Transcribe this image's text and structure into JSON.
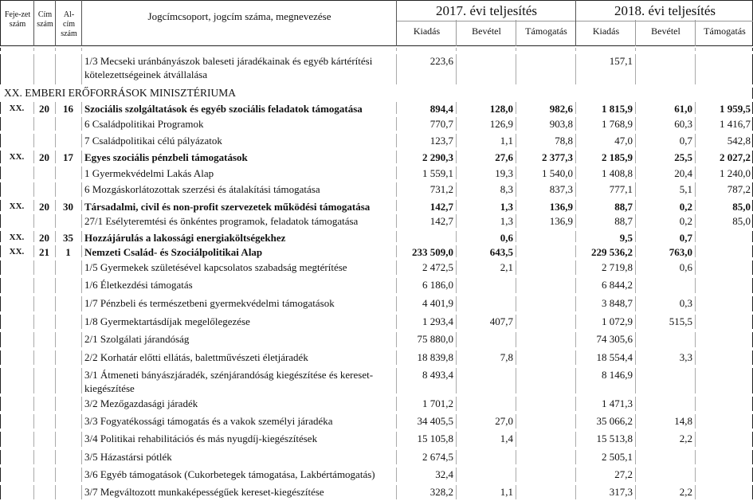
{
  "header": {
    "col_fejezet": "Feje-zet szám",
    "col_cim": "Cím szám",
    "col_alcim": "Al-cím szám",
    "col_name": "Jogcímcsoport, jogcím száma, megnevezése",
    "year1": "2017. évi teljesítés",
    "year2": "2018. évi teljesítés",
    "sub": [
      "Kiadás",
      "Bevétel",
      "Támogatás",
      "Kiadás",
      "Bevétel",
      "Támogatás"
    ]
  },
  "rows": [
    {
      "fej": "",
      "cim": "",
      "alcim": "",
      "name": "1/3 Mecseki uránbányászok baleseti járadékainak és egyéb kártérítési kötelezettségeinek átvállalása",
      "bold": false,
      "v": [
        "223,6",
        "",
        "",
        "157,1",
        "",
        ""
      ]
    },
    {
      "section": "XX. EMBERI ERŐFORRÁSOK MINISZTÉRIUMA"
    },
    {
      "fej": "XX.",
      "cim": "20",
      "alcim": "16",
      "name": "Szociális szolgáltatások és egyéb szociális feladatok támogatása",
      "bold": true,
      "v": [
        "894,4",
        "128,0",
        "982,6",
        "1 815,9",
        "61,0",
        "1 959,5"
      ]
    },
    {
      "fej": "",
      "cim": "",
      "alcim": "",
      "name": "6 Családpolitikai Programok",
      "bold": false,
      "v": [
        "770,7",
        "126,9",
        "903,8",
        "1 768,9",
        "60,3",
        "1 416,7"
      ]
    },
    {
      "fej": "",
      "cim": "",
      "alcim": "",
      "name": "7 Családpolitikai célú pályázatok",
      "bold": false,
      "v": [
        "123,7",
        "1,1",
        "78,8",
        "47,0",
        "0,7",
        "542,8"
      ]
    },
    {
      "fej": "XX.",
      "cim": "20",
      "alcim": "17",
      "name": "Egyes szociális pénzbeli támogatások",
      "bold": true,
      "v": [
        "2 290,3",
        "27,6",
        "2 377,3",
        "2 185,9",
        "25,5",
        "2 027,2"
      ]
    },
    {
      "fej": "",
      "cim": "",
      "alcim": "",
      "name": "1 Gyermekvédelmi Lakás Alap",
      "bold": false,
      "v": [
        "1 559,1",
        "19,3",
        "1 540,0",
        "1 408,8",
        "20,4",
        "1 240,0"
      ]
    },
    {
      "fej": "",
      "cim": "",
      "alcim": "",
      "name": "6 Mozgáskorlátozottak szerzési és átalakítási támogatása",
      "bold": false,
      "v": [
        "731,2",
        "8,3",
        "837,3",
        "777,1",
        "5,1",
        "787,2"
      ]
    },
    {
      "fej": "XX.",
      "cim": "20",
      "alcim": "30",
      "name": "Társadalmi, civil és non-profit szervezetek működési támogatása",
      "bold": true,
      "v": [
        "142,7",
        "1,3",
        "136,9",
        "88,7",
        "0,2",
        "85,0"
      ]
    },
    {
      "fej": "",
      "cim": "",
      "alcim": "",
      "name": "27/1 Esélyteremtési és önkéntes programok, feladatok támogatása",
      "bold": false,
      "v": [
        "142,7",
        "1,3",
        "136,9",
        "88,7",
        "0,2",
        "85,0"
      ]
    },
    {
      "fej": "XX.",
      "cim": "20",
      "alcim": "35",
      "name": "Hozzájárulás a lakossági energiaköltségekhez",
      "bold": true,
      "v": [
        "",
        "0,6",
        "",
        "9,5",
        "0,7",
        ""
      ]
    },
    {
      "fej": "XX.",
      "cim": "21",
      "alcim": "1",
      "name": "Nemzeti Család- és Szociálpolitikai Alap",
      "bold": true,
      "v": [
        "233 509,0",
        "643,5",
        "",
        "229 536,2",
        "763,0",
        ""
      ]
    },
    {
      "fej": "",
      "cim": "",
      "alcim": "",
      "name": "1/5 Gyermekek születésével kapcsolatos szabadság megtérítése",
      "bold": false,
      "v": [
        "2 472,5",
        "2,1",
        "",
        "2 719,8",
        "0,6",
        ""
      ]
    },
    {
      "fej": "",
      "cim": "",
      "alcim": "",
      "name": "1/6 Életkezdési támogatás",
      "bold": false,
      "v": [
        "6 186,0",
        "",
        "",
        "6 844,2",
        "",
        ""
      ]
    },
    {
      "fej": "",
      "cim": "",
      "alcim": "",
      "name": "1/7 Pénzbeli és természetbeni gyermekvédelmi támogatások",
      "bold": false,
      "v": [
        "4 401,9",
        "",
        "",
        "3 848,7",
        "0,3",
        ""
      ]
    },
    {
      "fej": "",
      "cim": "",
      "alcim": "",
      "name": "1/8 Gyermektartásdíjak megelőlegezése",
      "bold": false,
      "v": [
        "1 293,4",
        "407,7",
        "",
        "1 072,9",
        "515,5",
        ""
      ]
    },
    {
      "fej": "",
      "cim": "",
      "alcim": "",
      "name": "2/1 Szolgálati járandóság",
      "bold": false,
      "v": [
        "75 880,0",
        "",
        "",
        "74 305,6",
        "",
        ""
      ]
    },
    {
      "fej": "",
      "cim": "",
      "alcim": "",
      "name": "2/2 Korhatár előtti ellátás, balettművészeti életjáradék",
      "bold": false,
      "v": [
        "18 839,8",
        "7,8",
        "",
        "18 554,4",
        "3,3",
        ""
      ]
    },
    {
      "fej": "",
      "cim": "",
      "alcim": "",
      "name": "3/1 Átmeneti bányászjáradék, szénjárandóság kiegészítése és kereset-kiegészítése",
      "bold": false,
      "v": [
        "8 493,4",
        "",
        "",
        "8 146,9",
        "",
        ""
      ]
    },
    {
      "fej": "",
      "cim": "",
      "alcim": "",
      "name": "3/2 Mezőgazdasági járadék",
      "bold": false,
      "v": [
        "1 701,2",
        "",
        "",
        "1 471,3",
        "",
        ""
      ]
    },
    {
      "fej": "",
      "cim": "",
      "alcim": "",
      "name": "3/3 Fogyatékossági támogatás és a vakok személyi járadéka",
      "bold": false,
      "v": [
        "34 405,5",
        "27,0",
        "",
        "35 066,2",
        "14,8",
        ""
      ]
    },
    {
      "fej": "",
      "cim": "",
      "alcim": "",
      "name": "3/4 Politikai rehabilitációs és más nyugdíj-kiegészítések",
      "bold": false,
      "v": [
        "15 105,8",
        "1,4",
        "",
        "15 513,8",
        "2,2",
        ""
      ]
    },
    {
      "fej": "",
      "cim": "",
      "alcim": "",
      "name": "3/5 Házastársi pótlék",
      "bold": false,
      "v": [
        "2 674,5",
        "",
        "",
        "2 505,1",
        "",
        ""
      ]
    },
    {
      "fej": "",
      "cim": "",
      "alcim": "",
      "name": "3/6 Egyéb támogatások (Cukorbetegek támogatása, Lakbértámogatás)",
      "bold": false,
      "v": [
        "32,4",
        "",
        "",
        "27,2",
        "",
        ""
      ]
    },
    {
      "fej": "",
      "cim": "",
      "alcim": "",
      "name": "3/7 Megváltozott munkaképességűek kereset-kiegészítése",
      "bold": false,
      "v": [
        "328,2",
        "1,1",
        "",
        "317,3",
        "2,2",
        ""
      ]
    }
  ]
}
